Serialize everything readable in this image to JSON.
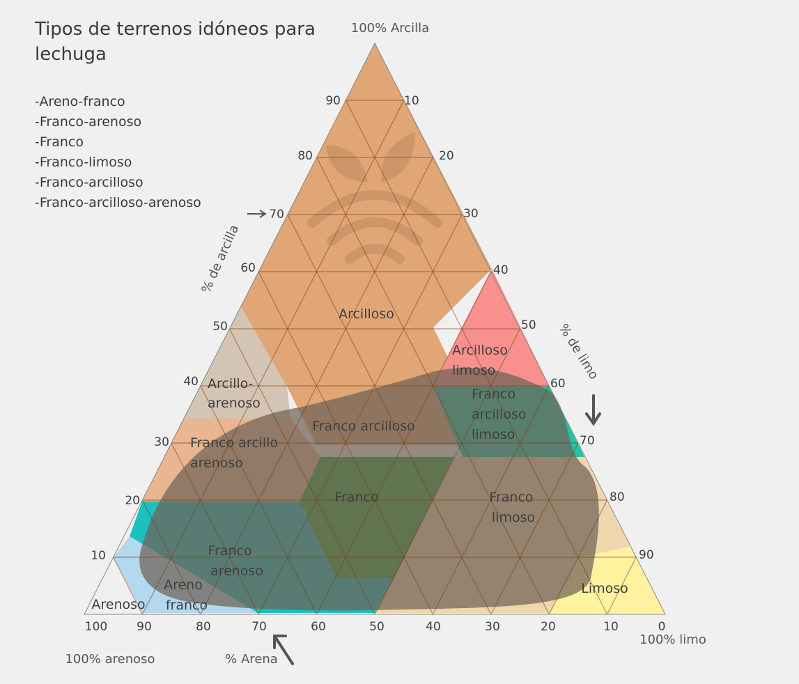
{
  "title": "Tipos de terrenos idóneos para lechuga",
  "soil_list": [
    "-Areno-franco",
    "-Franco-arenoso",
    "-Franco",
    "-Franco-limoso",
    "-Franco-arcilloso",
    "-Franco-arcilloso-arenoso"
  ],
  "corners": {
    "clay": "100% Arcilla",
    "silt": "100% limo",
    "sand": "100% arenoso",
    "sand_corner_label": "Arenoso"
  },
  "axes": {
    "clay": "% de arcilla",
    "silt": "% de limo",
    "sand": "% Arena"
  },
  "ticks": {
    "clay_left": [
      "90",
      "80",
      "70",
      "60",
      "50",
      "40",
      "30",
      "20",
      "10"
    ],
    "silt_right": [
      "10",
      "20",
      "30",
      "40",
      "50",
      "60",
      "70",
      "80",
      "90"
    ],
    "sand_bottom": [
      "100",
      "90",
      "80",
      "70",
      "60",
      "50",
      "40",
      "30",
      "20",
      "10",
      "0"
    ]
  },
  "classes": {
    "arcilloso": "Arcilloso",
    "arcilloso_limoso": [
      "Arcilloso",
      "limoso"
    ],
    "arcillo_arenoso": [
      "Arcillo-",
      "arenoso"
    ],
    "franco_arcilloso": "Franco arcilloso",
    "franco_arcilloso_limoso": [
      "Franco",
      "arcilloso",
      "limoso"
    ],
    "franco_arcillo_arenoso": [
      "Franco arcillo",
      "arenoso"
    ],
    "franco": "Franco",
    "franco_limoso": [
      "Franco",
      "limoso"
    ],
    "franco_arenoso": [
      "Franco",
      "arenoso"
    ],
    "areno_franco": [
      "Areno",
      "franco"
    ],
    "limoso": "Limoso"
  },
  "colors": {
    "background": "#f0f0f0",
    "arcilloso": "#e0a676",
    "arcilloso_limoso": "#f8908e",
    "arcillo_arenoso": "#d4c4b4",
    "franco_arcillo_arenoso": "#e8b690",
    "franco_arcilloso_limoso": "#22c4a6",
    "franco": "#3aa03a",
    "franco_limoso": "#f0d6ae",
    "franco_arenoso": "#1ebfbf",
    "areno_franco": "#b4d8ee",
    "limoso": "#fff3a0",
    "suitable_overlay": "#6f6358"
  }
}
